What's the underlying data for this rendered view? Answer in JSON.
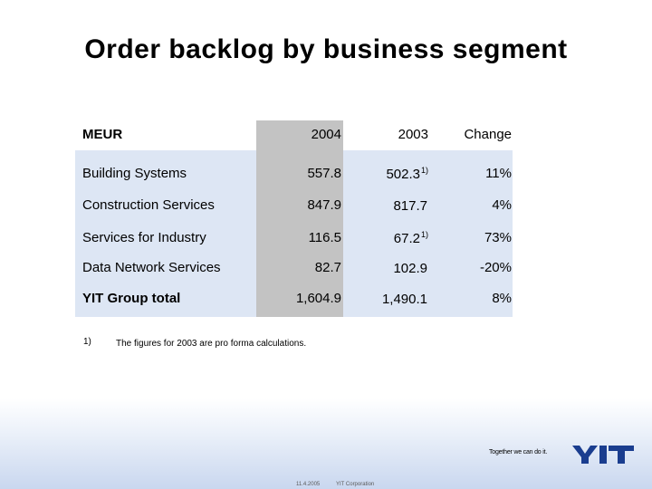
{
  "slide": {
    "title": "Order backlog by business segment",
    "table": {
      "headers": {
        "label": "MEUR",
        "col_2004": "2004",
        "col_2003": "2003",
        "col_change": "Change"
      },
      "rows": [
        {
          "label": "Building Systems",
          "v2004": "557.8",
          "v2003": "502.3",
          "v2003_note": "1)",
          "change": "11%"
        },
        {
          "label": "Construction Services",
          "v2004": "847.9",
          "v2003": "817.7",
          "v2003_note": "",
          "change": "4%"
        },
        {
          "label": "Services for Industry",
          "v2004": "116.5",
          "v2003": "67.2",
          "v2003_note": "1)",
          "change": "73%"
        },
        {
          "label": "Data Network Services",
          "v2004": "82.7",
          "v2003": "102.9",
          "v2003_note": "",
          "change": "-20%"
        },
        {
          "label": "YIT Group total",
          "v2004": "1,604.9",
          "v2003": "1,490.1",
          "v2003_note": "",
          "change": "8%"
        }
      ]
    },
    "footnote": {
      "marker": "1)",
      "text": "The figures for 2003 are pro forma calculations."
    },
    "footer": {
      "slogan": "Together we can do it.",
      "logo": "YIT",
      "date": "11.4.2005",
      "corporation": "YIT Corporation"
    },
    "colors": {
      "table_bg": "#dde6f4",
      "highlight_col": "#c3c3c3",
      "logo": "#1a3d8f"
    }
  }
}
